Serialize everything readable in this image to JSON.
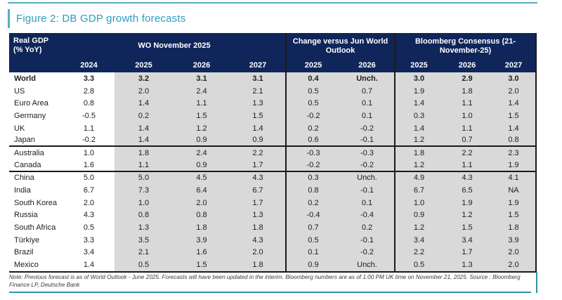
{
  "colors": {
    "header_navy": "#10265a",
    "teal_title": "#2d9dbe",
    "teal_light": "#57aec1",
    "teal_dark": "#2e94ac",
    "row_gray": "#d9d9d9",
    "line_black": "#1a1a1a"
  },
  "figure": {
    "title": "Figure 2: DB GDP growth forecasts",
    "note": "Note: Previous forecast is as of World Outlook - June 2025. Forecasts will have been updated in the interim. Bloomberg numbers are as of 1:00 PM UK time on November 21, 2025. Source : Bloomberg Finance LP, Deutsche Bank"
  },
  "table": {
    "corner_header": "Real GDP\n(% YoY)",
    "groups": [
      {
        "label": "WO November 2025",
        "span": 4
      },
      {
        "label": "Change versus Jun World Outlook",
        "span": 2
      },
      {
        "label": "Bloomberg Consensus (21-November-25)",
        "span": 3
      }
    ],
    "year_headers": [
      "2024",
      "2025",
      "2026",
      "2027",
      "2025",
      "2026",
      "2025",
      "2026",
      "2027"
    ],
    "rows": [
      {
        "name": "World",
        "bold": true,
        "group_end": false,
        "values": [
          "3.3",
          "3.2",
          "3.1",
          "3.1",
          "0.4",
          "Unch.",
          "3.0",
          "2.9",
          "3.0"
        ]
      },
      {
        "name": "US",
        "bold": false,
        "group_end": false,
        "values": [
          "2.8",
          "2.0",
          "2.4",
          "2.1",
          "0.5",
          "0.7",
          "1.9",
          "1.8",
          "2.0"
        ]
      },
      {
        "name": "Euro Area",
        "bold": false,
        "group_end": false,
        "values": [
          "0.8",
          "1.4",
          "1.1",
          "1.3",
          "0.5",
          "0.1",
          "1.4",
          "1.1",
          "1.4"
        ]
      },
      {
        "name": "Germany",
        "bold": false,
        "group_end": false,
        "values": [
          "-0.5",
          "0.2",
          "1.5",
          "1.5",
          "-0.2",
          "0.1",
          "0.3",
          "1.0",
          "1.5"
        ]
      },
      {
        "name": "UK",
        "bold": false,
        "group_end": false,
        "values": [
          "1.1",
          "1.4",
          "1.2",
          "1.4",
          "0.2",
          "-0.2",
          "1.4",
          "1.1",
          "1.4"
        ]
      },
      {
        "name": "Japan",
        "bold": false,
        "group_end": true,
        "values": [
          "-0.2",
          "1.4",
          "0.9",
          "0.9",
          "0.6",
          "-0.1",
          "1.2",
          "0.7",
          "0.8"
        ]
      },
      {
        "name": "Australia",
        "bold": false,
        "group_end": false,
        "values": [
          "1.0",
          "1.8",
          "2.4",
          "2.2",
          "-0.3",
          "-0.3",
          "1.8",
          "2.2",
          "2.3"
        ]
      },
      {
        "name": "Canada",
        "bold": false,
        "group_end": true,
        "values": [
          "1.6",
          "1.1",
          "0.9",
          "1.7",
          "-0.2",
          "-0.2",
          "1.2",
          "1.1",
          "1.9"
        ]
      },
      {
        "name": "China",
        "bold": false,
        "group_end": false,
        "values": [
          "5.0",
          "5.0",
          "4.5",
          "4.3",
          "0.3",
          "Unch.",
          "4.9",
          "4.3",
          "4.1"
        ]
      },
      {
        "name": "India",
        "bold": false,
        "group_end": false,
        "values": [
          "6.7",
          "7.3",
          "6.4",
          "6.7",
          "0.8",
          "-0.1",
          "6.7",
          "6.5",
          "NA"
        ]
      },
      {
        "name": "South Korea",
        "bold": false,
        "group_end": false,
        "values": [
          "2.0",
          "1.0",
          "2.0",
          "1.7",
          "0.2",
          "0.1",
          "1.0",
          "1.9",
          "1.9"
        ]
      },
      {
        "name": "Russia",
        "bold": false,
        "group_end": false,
        "values": [
          "4.3",
          "0.8",
          "0.8",
          "1.3",
          "-0.4",
          "-0.4",
          "0.9",
          "1.2",
          "1.5"
        ]
      },
      {
        "name": "South Africa",
        "bold": false,
        "group_end": false,
        "values": [
          "0.5",
          "1.3",
          "1.8",
          "1.8",
          "0.7",
          "0.2",
          "1.2",
          "1.5",
          "1.8"
        ]
      },
      {
        "name": "Türkiye",
        "bold": false,
        "group_end": false,
        "values": [
          "3.3",
          "3.5",
          "3.9",
          "4.3",
          "0.5",
          "-0.1",
          "3.4",
          "3.4",
          "3.9"
        ]
      },
      {
        "name": "Brazil",
        "bold": false,
        "group_end": false,
        "values": [
          "3.4",
          "2.1",
          "1.6",
          "2.0",
          "0.1",
          "-0.2",
          "2.2",
          "1.7",
          "2.0"
        ]
      },
      {
        "name": "Mexico",
        "bold": false,
        "group_end": false,
        "values": [
          "1.4",
          "0.5",
          "1.5",
          "1.8",
          "0.9",
          "Unch.",
          "0.5",
          "1.3",
          "2.0"
        ]
      }
    ]
  }
}
